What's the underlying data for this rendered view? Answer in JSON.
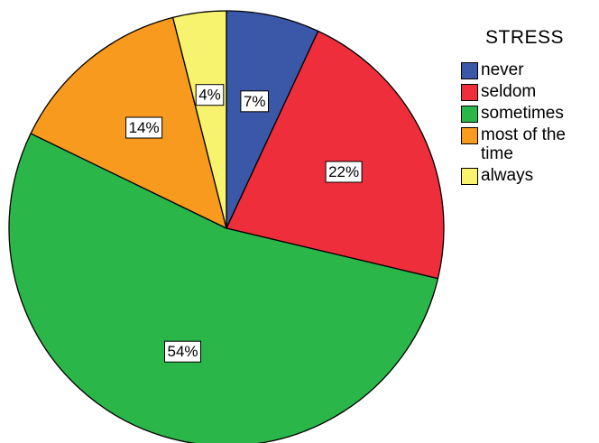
{
  "chart_data": {
    "type": "pie",
    "title": "",
    "legend_title": "STRESS",
    "legend_position": "right",
    "start_angle_deg": 0,
    "direction": "clockwise",
    "slices": [
      {
        "label": "never",
        "value": 7,
        "display": "7%",
        "color": "#3b57a8"
      },
      {
        "label": "seldom",
        "value": 22,
        "display": "22%",
        "color": "#ee2e3b"
      },
      {
        "label": "sometimes",
        "value": 54,
        "display": "54%",
        "color": "#2bb64a"
      },
      {
        "label": "most of the time",
        "value": 14,
        "display": "14%",
        "color": "#f79a1e"
      },
      {
        "label": "always",
        "value": 4,
        "display": "4%",
        "color": "#f8f36e"
      }
    ]
  }
}
